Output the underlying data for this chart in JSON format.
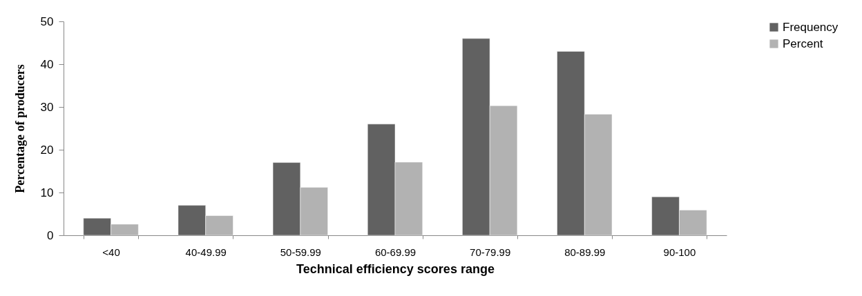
{
  "chart_data": {
    "type": "bar",
    "xlabel": "Technical efficiency scores range",
    "ylabel": "Percentage of producers",
    "categories": [
      "<40",
      "40-49.99",
      "50-59.99",
      "60-69.99",
      "70-79.99",
      "80-89.99",
      "90-100"
    ],
    "series": [
      {
        "name": "Frequency",
        "color": "#616161",
        "values": [
          4,
          7,
          17,
          26,
          46,
          43,
          9
        ]
      },
      {
        "name": "Percent",
        "color": "#b2b2b2",
        "values": [
          2.6,
          4.6,
          11.2,
          17.1,
          30.3,
          28.3,
          5.9
        ]
      }
    ],
    "ylim": [
      0,
      50
    ],
    "yticks": [
      0,
      10,
      20,
      30,
      40,
      50
    ],
    "grid": false,
    "legend": "right"
  }
}
